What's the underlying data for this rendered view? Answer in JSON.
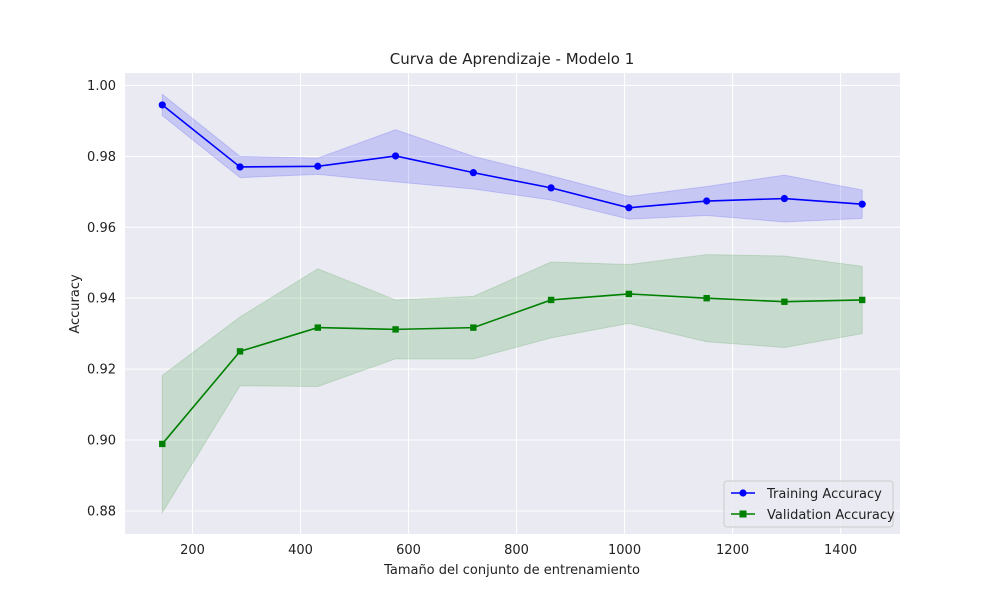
{
  "chart_data": {
    "type": "line",
    "title": "Curva de Aprendizaje - Modelo 1",
    "xlabel": "Tamaño del conjunto de entrenamiento",
    "ylabel": "Accuracy",
    "xlim": [
      75,
      1510
    ],
    "ylim": [
      0.8735,
      1.0035
    ],
    "xticks": [
      200,
      400,
      600,
      800,
      1000,
      1200,
      1400
    ],
    "xtick_labels": [
      "200",
      "400",
      "600",
      "800",
      "1000",
      "1200",
      "1400"
    ],
    "yticks": [
      0.88,
      0.9,
      0.92,
      0.94,
      0.96,
      0.98,
      1.0
    ],
    "ytick_labels": [
      "0.88",
      "0.90",
      "0.92",
      "0.94",
      "0.96",
      "0.98",
      "1.00"
    ],
    "grid": true,
    "legend_position": "bottom-right",
    "x": [
      144,
      288,
      432,
      576,
      720,
      864,
      1008,
      1152,
      1296,
      1440
    ],
    "series": [
      {
        "name": "Training Accuracy",
        "color": "#0000ff",
        "band_color": "#0000ff",
        "marker": "circle",
        "values": [
          0.9945,
          0.977,
          0.9772,
          0.9801,
          0.9754,
          0.9711,
          0.9655,
          0.9674,
          0.9681,
          0.9665
        ],
        "upper": [
          0.9975,
          0.98,
          0.9795,
          0.9875,
          0.98,
          0.9745,
          0.9687,
          0.9715,
          0.9747,
          0.9705
        ],
        "lower": [
          0.9915,
          0.974,
          0.9749,
          0.9728,
          0.9708,
          0.9677,
          0.9623,
          0.9633,
          0.9615,
          0.9625
        ]
      },
      {
        "name": "Validation Accuracy",
        "color": "#008000",
        "band_color": "#008000",
        "marker": "square",
        "values": [
          0.8989,
          0.925,
          0.9317,
          0.9312,
          0.9317,
          0.9395,
          0.9412,
          0.94,
          0.939,
          0.9395
        ],
        "upper": [
          0.9182,
          0.9347,
          0.9483,
          0.9395,
          0.9405,
          0.9502,
          0.9495,
          0.9523,
          0.9519,
          0.949
        ],
        "lower": [
          0.8795,
          0.9153,
          0.9151,
          0.9229,
          0.9229,
          0.9288,
          0.9329,
          0.9277,
          0.9261,
          0.93
        ]
      }
    ]
  },
  "colors": {
    "plot_background": "#eaeaf2",
    "grid": "#ffffff"
  }
}
